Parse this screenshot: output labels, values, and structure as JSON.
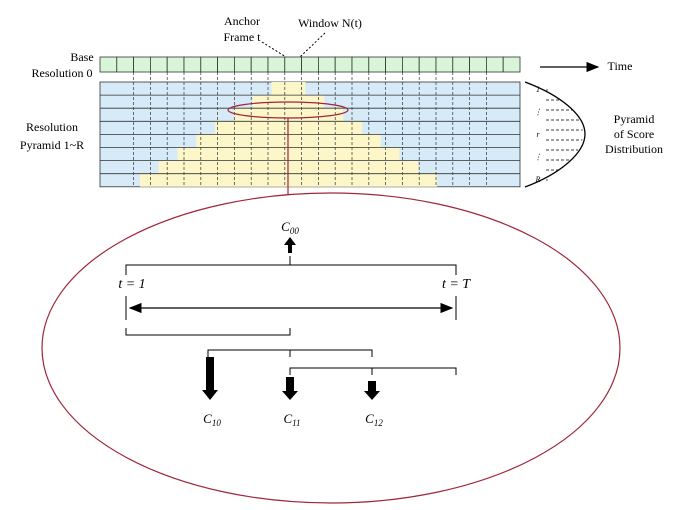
{
  "labels": {
    "anchor": "Anchor",
    "frame": "Frame t",
    "window": "Window N(t)",
    "base": "Base",
    "base_res": "Resolution 0",
    "time": "Time",
    "resolution": "Resolution",
    "pyramid_range": "Pyramid 1~R",
    "dist1": "Pyramid",
    "dist2": "of Score",
    "dist3": "Distribution"
  },
  "levels": [
    "1",
    "⋮",
    "r",
    "⋮",
    "R"
  ],
  "tree": {
    "root": {
      "base": "C",
      "sub": "00"
    },
    "start": "t = 1",
    "end": "t = T",
    "children": [
      {
        "base": "C",
        "sub": "10"
      },
      {
        "base": "C",
        "sub": "11"
      },
      {
        "base": "C",
        "sub": "12"
      }
    ]
  }
}
